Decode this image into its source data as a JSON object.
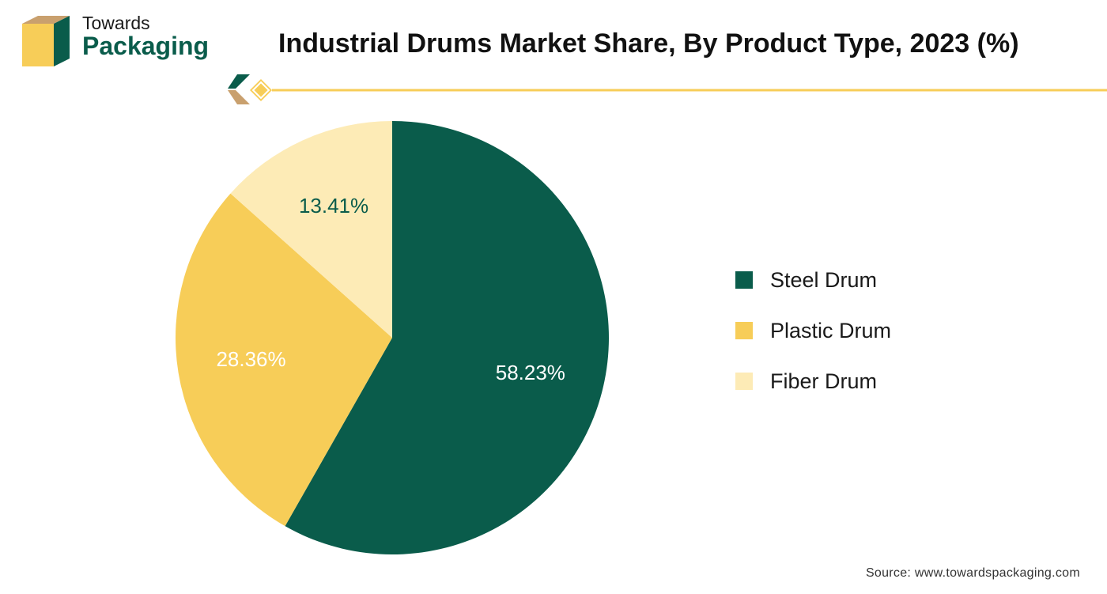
{
  "brand": {
    "name_top": "Towards",
    "name_bottom": "Packaging",
    "colors": {
      "dark_green": "#0a5c4b",
      "yellow": "#f7cd58",
      "tan": "#c9a06e"
    }
  },
  "source": "Source: www.towardspackaging.com",
  "chart_data": {
    "type": "pie",
    "title": "Industrial Drums Market Share, By Product Type, 2023 (%)",
    "slices": [
      {
        "label": "Steel Drum",
        "value": 58.23,
        "display": "58.23%",
        "color": "#0a5c4b",
        "label_color": "#ffffff"
      },
      {
        "label": "Plastic Drum",
        "value": 28.36,
        "display": "28.36%",
        "color": "#f7cd58",
        "label_color": "#ffffff"
      },
      {
        "label": "Fiber Drum",
        "value": 13.41,
        "display": "13.41%",
        "color": "#fdebb6",
        "label_color": "#0a5c4b"
      }
    ],
    "legend_position": "right"
  }
}
